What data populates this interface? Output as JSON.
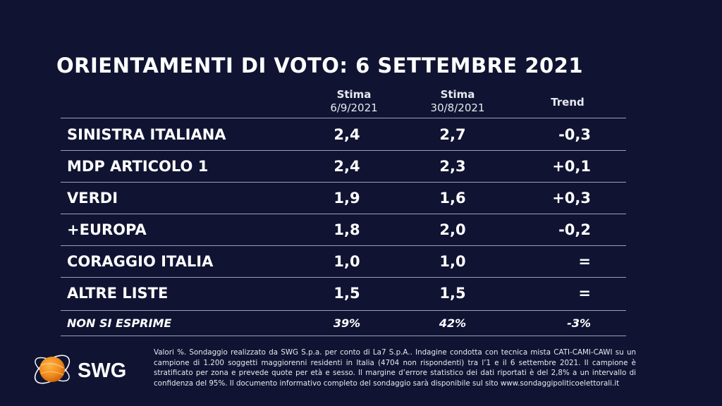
{
  "title": "ORIENTAMENTI DI VOTO: 6 SETTEMBRE 2021",
  "chart_data": {
    "type": "table",
    "columns": [
      {
        "label": "Stima",
        "date": "6/9/2021"
      },
      {
        "label": "Stima",
        "date": "30/8/2021"
      },
      {
        "label": "Trend",
        "date": ""
      }
    ],
    "rows": [
      {
        "name": "SINISTRA ITALIANA",
        "stima_current": "2,4",
        "stima_previous": "2,7",
        "trend": "-0,3"
      },
      {
        "name": "MDP ARTICOLO 1",
        "stima_current": "2,4",
        "stima_previous": "2,3",
        "trend": "+0,1"
      },
      {
        "name": "VERDI",
        "stima_current": "1,9",
        "stima_previous": "1,6",
        "trend": "+0,3"
      },
      {
        "name": "+EUROPA",
        "stima_current": "1,8",
        "stima_previous": "2,0",
        "trend": "-0,2"
      },
      {
        "name": "CORAGGIO ITALIA",
        "stima_current": "1,0",
        "stima_previous": "1,0",
        "trend": "="
      },
      {
        "name": "ALTRE LISTE",
        "stima_current": "1,5",
        "stima_previous": "1,5",
        "trend": "="
      },
      {
        "name": "NON SI ESPRIME",
        "stima_current": "39%",
        "stima_previous": "42%",
        "trend": "-3%"
      }
    ]
  },
  "footer": "Valori %. Sondaggio realizzato da SWG S.p.a. per conto di La7 S.p.A.. Indagine condotta con tecnica mista CATI-CAMI-CAWI su un campione di 1.200 soggetti maggiorenni residenti in Italia (4704 non rispondenti) tra l’1 e il 6 settembre 2021. Il campione è stratificato per zona e prevede quote per età e sesso. Il margine d’errore statistico dei dati riportati è del 2,8% a un intervallo di confidenza del 95%. Il documento informativo completo del sondaggio sarà disponibile sul sito www.sondaggipoliticoelettorali.it",
  "logo": {
    "text": "SWG",
    "colors": {
      "orange": "#f08a1c",
      "white": "#ffffff"
    }
  }
}
